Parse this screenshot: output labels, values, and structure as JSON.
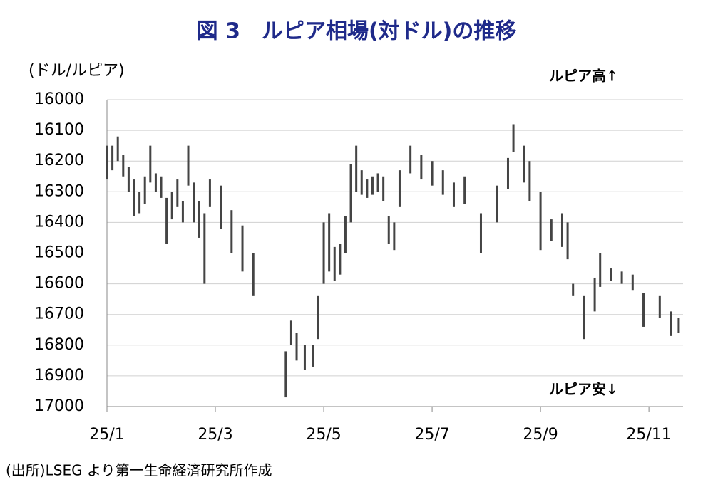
{
  "chart_data": {
    "type": "range_bar",
    "title": "図 3　ルピア相場(対ドル)の推移",
    "y_label": "(ドル/ルピア)",
    "annotations": [
      "ルピア高↑",
      "ルピア安↓"
    ],
    "source": "(出所)LSEG より第一生命経済研究所作成",
    "color": "#444444",
    "y_inverted": true,
    "grid": true,
    "ylim": [
      16000,
      17000
    ],
    "yticks": [
      16000,
      16100,
      16200,
      16300,
      16400,
      16500,
      16600,
      16700,
      16800,
      16900,
      17000
    ],
    "xlim": [
      1,
      11.63
    ],
    "xticks": [
      {
        "value": 1,
        "label": "25/1"
      },
      {
        "value": 3,
        "label": "25/3"
      },
      {
        "value": 5,
        "label": "25/5"
      },
      {
        "value": 7,
        "label": "25/7"
      },
      {
        "value": 9,
        "label": "25/9"
      },
      {
        "value": 11,
        "label": "25/11"
      }
    ],
    "x": [
      1.0,
      1.1,
      1.2,
      1.3,
      1.4,
      1.5,
      1.6,
      1.7,
      1.8,
      1.9,
      2.0,
      2.1,
      2.2,
      2.3,
      2.4,
      2.5,
      2.6,
      2.7,
      2.8,
      2.9,
      3.1,
      3.3,
      3.5,
      3.7,
      4.3,
      4.4,
      4.5,
      4.65,
      4.8,
      4.9,
      5.0,
      5.1,
      5.2,
      5.3,
      5.4,
      5.5,
      5.6,
      5.7,
      5.8,
      5.9,
      6.0,
      6.1,
      6.2,
      6.3,
      6.4,
      6.6,
      6.8,
      7.0,
      7.2,
      7.4,
      7.6,
      7.9,
      8.2,
      8.4,
      8.5,
      8.7,
      8.8,
      9.0,
      9.2,
      9.4,
      9.5,
      9.6,
      9.8,
      10.0,
      10.1,
      10.3,
      10.5,
      10.7,
      10.9,
      11.2,
      11.4,
      11.55
    ],
    "min": [
      16150,
      16150,
      16120,
      16180,
      16220,
      16260,
      16300,
      16250,
      16150,
      16240,
      16250,
      16320,
      16300,
      16260,
      16330,
      16150,
      16270,
      16330,
      16370,
      16260,
      16280,
      16360,
      16410,
      16500,
      16820,
      16720,
      16760,
      16800,
      16800,
      16640,
      16400,
      16370,
      16480,
      16470,
      16380,
      16210,
      16150,
      16230,
      16260,
      16250,
      16240,
      16250,
      16380,
      16400,
      16230,
      16150,
      16180,
      16200,
      16230,
      16270,
      16250,
      16370,
      16280,
      16190,
      16080,
      16150,
      16200,
      16300,
      16390,
      16370,
      16400,
      16600,
      16640,
      16580,
      16500,
      16550,
      16560,
      16570,
      16630,
      16640,
      16690,
      16710
    ],
    "max": [
      16260,
      16230,
      16200,
      16250,
      16300,
      16380,
      16370,
      16340,
      16270,
      16300,
      16320,
      16470,
      16390,
      16350,
      16400,
      16280,
      16400,
      16450,
      16600,
      16350,
      16420,
      16500,
      16560,
      16640,
      16970,
      16800,
      16850,
      16880,
      16870,
      16780,
      16600,
      16560,
      16590,
      16570,
      16500,
      16400,
      16300,
      16310,
      16320,
      16310,
      16300,
      16330,
      16470,
      16490,
      16350,
      16240,
      16260,
      16280,
      16310,
      16350,
      16340,
      16500,
      16400,
      16290,
      16170,
      16270,
      16330,
      16490,
      16460,
      16480,
      16520,
      16640,
      16780,
      16690,
      16610,
      16590,
      16600,
      16620,
      16740,
      16710,
      16770,
      16760
    ]
  }
}
